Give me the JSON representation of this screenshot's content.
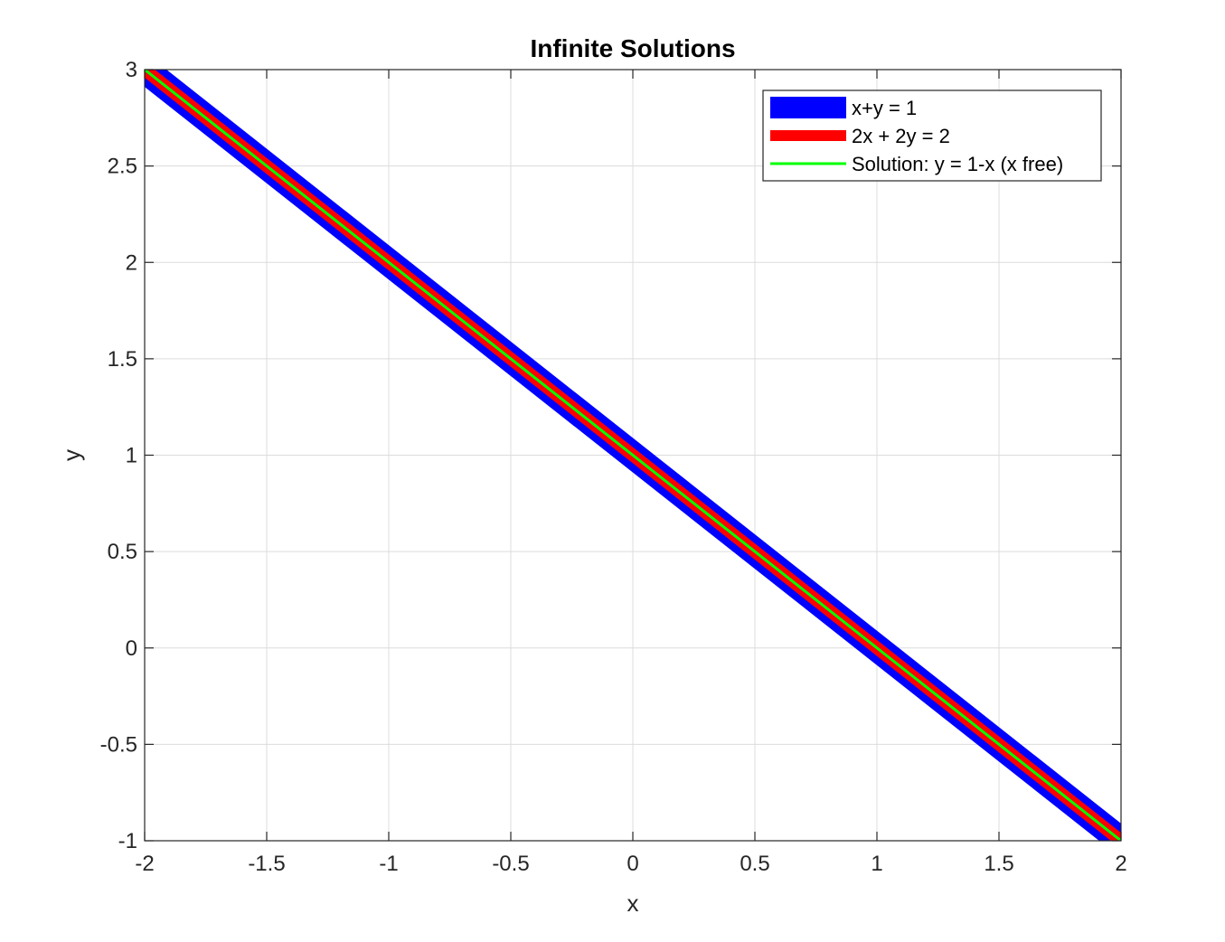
{
  "chart_data": {
    "type": "line",
    "title": "Infinite Solutions",
    "xlabel": "x",
    "ylabel": "y",
    "xlim": [
      -2,
      2
    ],
    "ylim": [
      -1,
      3
    ],
    "grid": true,
    "legend_position": "top-right",
    "x_ticks": [
      {
        "value": -2,
        "label": "-2"
      },
      {
        "value": -1.5,
        "label": "-1.5"
      },
      {
        "value": -1,
        "label": "-1"
      },
      {
        "value": -0.5,
        "label": "-0.5"
      },
      {
        "value": 0,
        "label": "0"
      },
      {
        "value": 0.5,
        "label": "0.5"
      },
      {
        "value": 1,
        "label": "1"
      },
      {
        "value": 1.5,
        "label": "1.5"
      },
      {
        "value": 2,
        "label": "2"
      }
    ],
    "y_ticks": [
      {
        "value": -1,
        "label": "-1"
      },
      {
        "value": -0.5,
        "label": "-0.5"
      },
      {
        "value": 0,
        "label": "0"
      },
      {
        "value": 0.5,
        "label": "0.5"
      },
      {
        "value": 1,
        "label": "1"
      },
      {
        "value": 1.5,
        "label": "1.5"
      },
      {
        "value": 2,
        "label": "2"
      },
      {
        "value": 2.5,
        "label": "2.5"
      },
      {
        "value": 3,
        "label": "3"
      }
    ],
    "series": [
      {
        "name": "x+y = 1",
        "color": "#0000ff",
        "x": [
          -2,
          2
        ],
        "y": [
          3,
          -1
        ]
      },
      {
        "name": "2x + 2y = 2",
        "color": "#ff0000",
        "x": [
          -2,
          2
        ],
        "y": [
          3,
          -1
        ]
      },
      {
        "name": "Solution: y = 1-x (x free)",
        "color": "#00ff00",
        "x": [
          -2,
          2
        ],
        "y": [
          3,
          -1
        ]
      }
    ]
  }
}
